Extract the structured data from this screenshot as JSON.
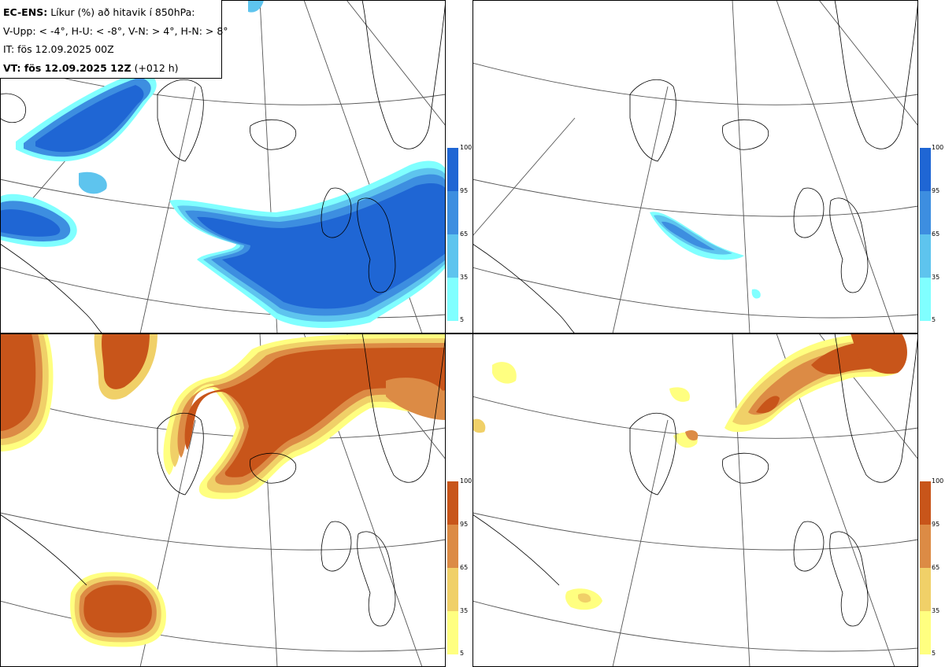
{
  "info": {
    "model": "EC-ENS:",
    "title_rest": "Líkur (%) að hitavik í 850hPa:",
    "thresholds": "V-Upp: < -4°, H-U: < -8°, V-N: > 4°, H-N: > 8°",
    "init_time": "IT: fös 12.09.2025 00Z",
    "valid_label": "VT: fös 12.09.2025 12Z",
    "lead": "(+012 h)"
  },
  "colorbars": {
    "cold": {
      "ticks": [
        "100",
        "95",
        "65",
        "35",
        "5"
      ],
      "colors": [
        "#1f66d4",
        "#3d8ee0",
        "#5ec4ee",
        "#80ffff"
      ]
    },
    "warm": {
      "ticks": [
        "100",
        "95",
        "65",
        "35",
        "5"
      ],
      "colors": [
        "#c8551a",
        "#dc8b45",
        "#f0d068",
        "#ffff80"
      ]
    }
  },
  "panels": [
    {
      "id": "V-Upp",
      "scheme": "cold"
    },
    {
      "id": "H-U",
      "scheme": "cold"
    },
    {
      "id": "V-N",
      "scheme": "warm"
    },
    {
      "id": "H-N",
      "scheme": "warm"
    }
  ]
}
